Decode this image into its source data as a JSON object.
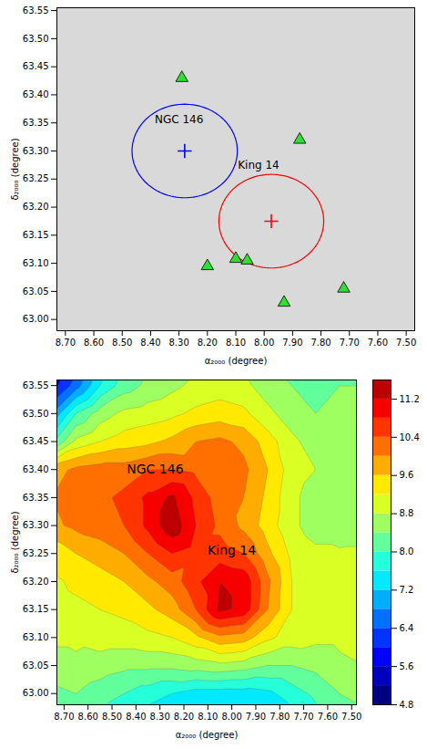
{
  "chart_data": [
    {
      "type": "scatter",
      "xlabel": "α₂₀₀₀ (degree)",
      "ylabel": "δ₂₀₀₀ (degree)",
      "xlim": [
        8.73,
        7.47
      ],
      "ylim": [
        62.98,
        63.555
      ],
      "xticks": [
        {
          "value": 8.7,
          "label": "8.70"
        },
        {
          "value": 8.6,
          "label": "8.60"
        },
        {
          "value": 8.5,
          "label": "8.50"
        },
        {
          "value": 8.4,
          "label": "8.40"
        },
        {
          "value": 8.3,
          "label": "8.30"
        },
        {
          "value": 8.2,
          "label": "8.20"
        },
        {
          "value": 8.1,
          "label": "8.10"
        },
        {
          "value": 8.0,
          "label": "8.00"
        },
        {
          "value": 7.9,
          "label": "7.90"
        },
        {
          "value": 7.8,
          "label": "7.80"
        },
        {
          "value": 7.7,
          "label": "7.70"
        },
        {
          "value": 7.6,
          "label": "7.60"
        },
        {
          "value": 7.5,
          "label": "7.50"
        }
      ],
      "yticks": [
        {
          "value": 63,
          "label": "63.00"
        },
        63.05,
        {
          "value": 63.1,
          "label": "63.10"
        },
        63.15,
        {
          "value": 63.2,
          "label": "63.20"
        },
        63.25,
        {
          "value": 63.3,
          "label": "63.30"
        },
        63.35,
        {
          "value": 63.4,
          "label": "63.40"
        },
        63.45,
        {
          "value": 63.5,
          "label": "63.50"
        },
        63.55
      ],
      "circles": [
        {
          "color": "#0000ff",
          "x": 8.28,
          "y": 63.3,
          "radius": 0.0833,
          "marker": "plus"
        },
        {
          "color": "#ff0000",
          "x": 7.975,
          "y": 63.175,
          "radius": 0.0833,
          "marker": "plus"
        }
      ],
      "series": [
        {
          "color": "#33dd33",
          "marker": "triangle",
          "x": [
            8.29,
            7.875,
            8.2,
            8.1,
            8.06,
            7.93,
            7.72
          ],
          "y": [
            63.43,
            63.32,
            63.095,
            63.108,
            63.105,
            63.03,
            63.055
          ]
        }
      ],
      "annotations": [
        {
          "text": "NGC 146",
          "x": 8.3,
          "y": 63.355
        },
        {
          "text": "King 14",
          "x": 8.02,
          "y": 63.275
        }
      ]
    },
    {
      "type": "contour",
      "xlabel": "α₂₀₀₀ (degree)",
      "ylabel": "δ₂₀₀₀ (degree)",
      "xlim": [
        8.73,
        7.48
      ],
      "ylim": [
        62.98,
        63.56
      ],
      "xticks": [
        {
          "value": 8.7,
          "label": "8.70"
        },
        {
          "value": 8.6,
          "label": "8.60"
        },
        {
          "value": 8.5,
          "label": "8.50"
        },
        {
          "value": 8.4,
          "label": "8.40"
        },
        {
          "value": 8.3,
          "label": "8.30"
        },
        {
          "value": 8.2,
          "label": "8.20"
        },
        {
          "value": 8.1,
          "label": "8.10"
        },
        {
          "value": 8.0,
          "label": "8.00"
        },
        {
          "value": 7.9,
          "label": "7.90"
        },
        {
          "value": 7.8,
          "label": "7.80"
        },
        {
          "value": 7.7,
          "label": "7.70"
        },
        {
          "value": 7.6,
          "label": "7.60"
        },
        {
          "value": 7.5,
          "label": "7.50"
        }
      ],
      "yticks": [
        {
          "value": 63,
          "label": "63.00"
        },
        63.05,
        {
          "value": 63.1,
          "label": "63.10"
        },
        63.15,
        {
          "value": 63.2,
          "label": "63.20"
        },
        63.25,
        {
          "value": 63.3,
          "label": "63.30"
        },
        63.35,
        {
          "value": 63.4,
          "label": "63.40"
        },
        63.45,
        {
          "value": 63.5,
          "label": "63.50"
        },
        63.55
      ],
      "color": "jet",
      "zlim": [
        4.8,
        11.6
      ],
      "zticks": [
        4.8,
        5.6,
        6.4,
        7.2,
        {
          "value": 8,
          "label": "8.0"
        },
        8.8,
        9.6,
        10.4,
        11.2
      ],
      "levels": [
        4.8,
        5.2,
        5.6,
        6.0,
        6.4,
        6.8,
        7.2,
        7.6,
        8.0,
        8.4,
        8.8,
        9.2,
        9.6,
        10.0,
        10.4,
        10.8,
        11.2,
        11.6
      ],
      "grid_x": [
        8.75,
        8.65,
        8.55,
        8.45,
        8.35,
        8.25,
        8.15,
        8.05,
        7.95,
        7.85,
        7.75,
        7.65,
        7.55,
        7.45
      ],
      "grid_y": [
        63.6,
        63.55,
        63.5,
        63.45,
        63.4,
        63.35,
        63.3,
        63.25,
        63.2,
        63.15,
        63.1,
        63.05,
        63.0,
        62.95
      ],
      "density": [
        [
          5.3,
          6.0,
          7.2,
          8.0,
          8.3,
          8.5,
          8.7,
          8.8,
          8.7,
          8.4,
          8.2,
          8.1,
          8.2,
          8.2
        ],
        [
          5.8,
          6.6,
          7.6,
          8.2,
          8.5,
          8.7,
          8.9,
          9.0,
          8.9,
          8.6,
          8.4,
          8.3,
          8.4,
          8.4
        ],
        [
          6.8,
          8.0,
          8.6,
          8.9,
          9.0,
          9.1,
          9.3,
          9.4,
          9.3,
          8.9,
          8.6,
          8.4,
          8.5,
          8.5
        ],
        [
          7.9,
          8.9,
          9.2,
          9.4,
          9.5,
          9.7,
          10.0,
          10.1,
          9.9,
          9.4,
          8.9,
          8.6,
          8.7,
          8.7
        ],
        [
          9.8,
          10.1,
          10.2,
          10.2,
          10.4,
          10.4,
          10.3,
          10.3,
          10.1,
          9.6,
          9.0,
          8.8,
          8.7,
          8.7
        ],
        [
          10.0,
          10.2,
          10.3,
          10.5,
          10.9,
          11.3,
          10.7,
          10.2,
          10.0,
          9.5,
          8.9,
          8.6,
          8.5,
          8.6
        ],
        [
          9.9,
          10.1,
          10.2,
          10.4,
          10.9,
          11.5,
          10.8,
          10.3,
          9.9,
          9.4,
          8.9,
          8.6,
          8.4,
          8.5
        ],
        [
          9.3,
          9.6,
          9.8,
          10.0,
          10.4,
          10.8,
          10.6,
          10.6,
          10.4,
          9.7,
          9.1,
          8.9,
          8.9,
          8.9
        ],
        [
          9.1,
          9.3,
          9.4,
          9.6,
          9.9,
          10.2,
          10.7,
          11.2,
          11.1,
          10.1,
          9.2,
          8.9,
          8.9,
          8.9
        ],
        [
          9.0,
          9.1,
          9.2,
          9.3,
          9.5,
          9.8,
          10.4,
          11.3,
          11.1,
          10.0,
          9.2,
          8.9,
          8.9,
          8.9
        ],
        [
          8.9,
          8.9,
          9.0,
          9.0,
          9.1,
          9.2,
          9.5,
          9.9,
          9.8,
          9.3,
          9.0,
          8.9,
          8.9,
          8.8
        ],
        [
          8.6,
          8.7,
          8.6,
          8.5,
          8.5,
          8.5,
          8.6,
          8.7,
          8.6,
          8.4,
          8.4,
          8.5,
          8.7,
          8.8
        ],
        [
          8.3,
          8.4,
          8.2,
          8.0,
          7.8,
          7.6,
          7.4,
          7.4,
          7.4,
          7.5,
          7.8,
          8.1,
          8.4,
          8.5
        ],
        [
          8.1,
          8.2,
          7.9,
          7.6,
          7.3,
          7.1,
          6.9,
          6.9,
          6.9,
          7.0,
          7.4,
          7.8,
          8.2,
          8.3
        ]
      ],
      "annotations": [
        {
          "text": "NGC 146",
          "x": 8.32,
          "y": 63.4
        },
        {
          "text": "King 14",
          "x": 8.0,
          "y": 63.255
        }
      ]
    }
  ]
}
